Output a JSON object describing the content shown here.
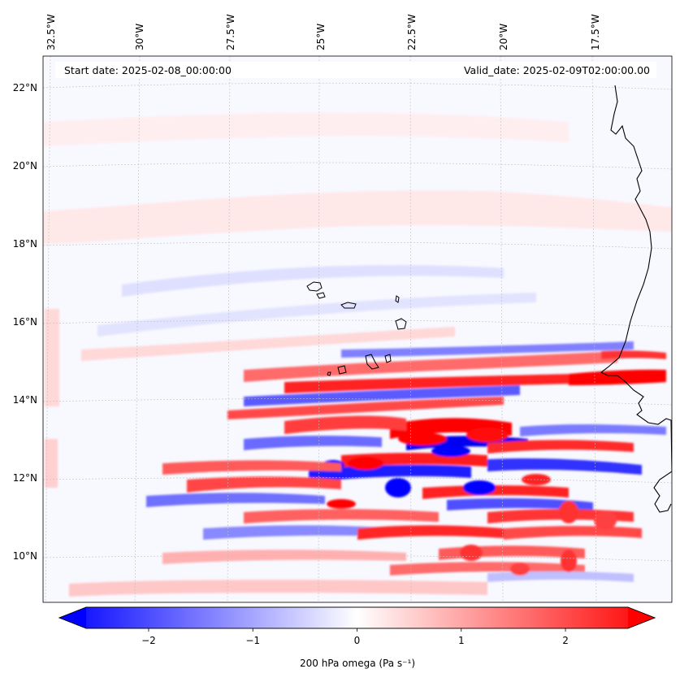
{
  "header": {
    "start_date": "Start date: 2025-02-08_00:00:00",
    "valid_date": "Valid_date: 2025-02-09T02:00:00.00"
  },
  "map": {
    "lon_labels": [
      "32.5°W",
      "30°W",
      "27.5°W",
      "25°W",
      "22.5°W",
      "20°W",
      "17.5°W"
    ],
    "lat_labels": [
      "22°N",
      "20°N",
      "18°N",
      "16°N",
      "14°N",
      "12°N",
      "10°N"
    ],
    "colors": {
      "positive": "#ff0000",
      "negative": "#0000ff",
      "neutral": "#ffffff",
      "coastline": "#000000"
    }
  },
  "colorbar": {
    "label": "200 hPa omega (Pa s⁻¹)",
    "tick_labels": [
      "−2",
      "−1",
      "0",
      "1",
      "2"
    ],
    "range": [
      -2.6,
      2.6
    ]
  }
}
